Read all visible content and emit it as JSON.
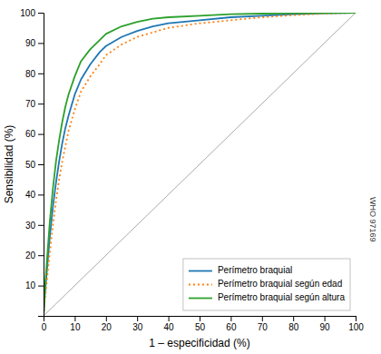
{
  "chart_data": {
    "type": "line",
    "xlabel": "1 – especificidad (%)",
    "ylabel": "Sensibilidad (%)",
    "annotation": "WHO 97169",
    "x": [
      0,
      0.5,
      1,
      1.5,
      2,
      3,
      4,
      5,
      6,
      7,
      8,
      10,
      12,
      15,
      18,
      20,
      25,
      30,
      35,
      40,
      50,
      60,
      70,
      80,
      90,
      100
    ],
    "series": [
      {
        "name": "Perímetro braquial",
        "line_style": "solid",
        "values": [
          0,
          8,
          14,
          20,
          26,
          36,
          44,
          51,
          57,
          62,
          66,
          73,
          78,
          83,
          87,
          89,
          92,
          94,
          95.5,
          96.5,
          97.5,
          98.5,
          99,
          99.5,
          99.8,
          100
        ]
      },
      {
        "name": "Perímetro braquial según edad",
        "line_style": "dotted",
        "values": [
          0,
          6,
          11,
          16,
          21,
          30,
          38,
          45,
          51,
          56,
          61,
          68,
          74,
          79,
          83,
          86,
          89.5,
          92,
          93.5,
          95,
          96.5,
          97.5,
          98.5,
          99.2,
          99.7,
          100
        ]
      },
      {
        "name": "Perímetro braquial según altura",
        "line_style": "solid",
        "values": [
          0,
          10,
          17,
          24,
          31,
          42,
          51,
          58,
          64,
          69,
          73,
          79,
          84,
          88,
          91,
          93,
          95.5,
          97,
          98,
          98.5,
          99,
          99.5,
          99.7,
          99.8,
          99.9,
          100
        ]
      }
    ],
    "reference_line": {
      "x": [
        0,
        100
      ],
      "values": [
        0,
        100
      ],
      "color": "#aaaaaa"
    },
    "xlim": [
      0,
      100
    ],
    "ylim": [
      0,
      100
    ],
    "xticks": [
      0,
      10,
      20,
      30,
      40,
      50,
      60,
      70,
      80,
      90,
      100
    ],
    "yticks": [
      10,
      20,
      30,
      40,
      50,
      60,
      70,
      80,
      90,
      100
    ],
    "grid": false,
    "legend": "lower right"
  }
}
